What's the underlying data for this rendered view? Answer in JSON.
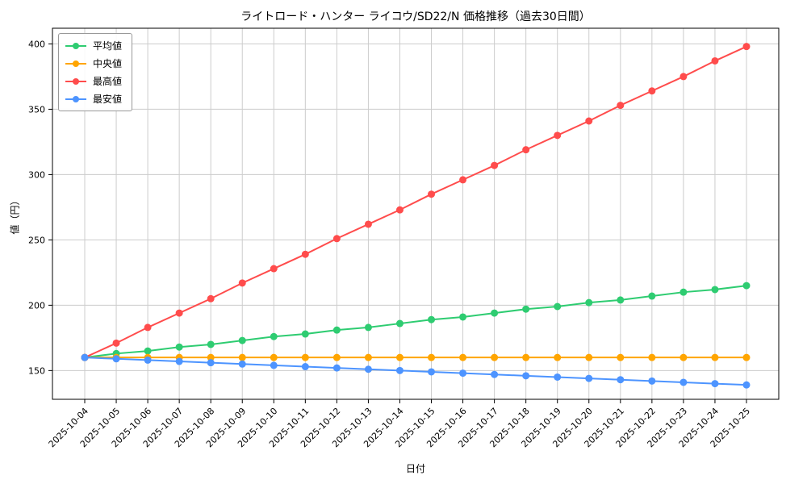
{
  "chart_data": {
    "type": "line",
    "title": "ライトロード・ハンター ライコウ/SD22/N 価格推移（過去30日間）",
    "xlabel": "日付",
    "ylabel": "値（円）",
    "ylim": [
      128,
      412
    ],
    "yticks": [
      150,
      200,
      250,
      300,
      350,
      400
    ],
    "grid": true,
    "legend_position": "upper left",
    "categories": [
      "2025-10-04",
      "2025-10-05",
      "2025-10-06",
      "2025-10-07",
      "2025-10-08",
      "2025-10-09",
      "2025-10-10",
      "2025-10-11",
      "2025-10-12",
      "2025-10-13",
      "2025-10-14",
      "2025-10-15",
      "2025-10-16",
      "2025-10-17",
      "2025-10-18",
      "2025-10-19",
      "2025-10-20",
      "2025-10-21",
      "2025-10-22",
      "2025-10-23",
      "2025-10-24",
      "2025-10-25"
    ],
    "series": [
      {
        "key": "average",
        "name": "平均値",
        "color": "#2ecc71",
        "values": [
          160,
          163,
          165,
          168,
          170,
          173,
          176,
          178,
          181,
          183,
          186,
          189,
          191,
          194,
          197,
          199,
          202,
          204,
          207,
          210,
          212,
          215
        ]
      },
      {
        "key": "median",
        "name": "中央値",
        "color": "#ffa500",
        "values": [
          160,
          160,
          160,
          160,
          160,
          160,
          160,
          160,
          160,
          160,
          160,
          160,
          160,
          160,
          160,
          160,
          160,
          160,
          160,
          160,
          160,
          160
        ]
      },
      {
        "key": "max",
        "name": "最高値",
        "color": "#ff4c4c",
        "values": [
          160,
          171,
          183,
          194,
          205,
          217,
          228,
          239,
          251,
          262,
          273,
          285,
          296,
          307,
          319,
          330,
          341,
          353,
          364,
          375,
          387,
          398
        ]
      },
      {
        "key": "min",
        "name": "最安値",
        "color": "#4d94ff",
        "values": [
          160,
          159,
          158,
          157,
          156,
          155,
          154,
          153,
          152,
          151,
          150,
          149,
          148,
          147,
          146,
          145,
          144,
          143,
          142,
          141,
          140,
          139
        ]
      }
    ]
  }
}
